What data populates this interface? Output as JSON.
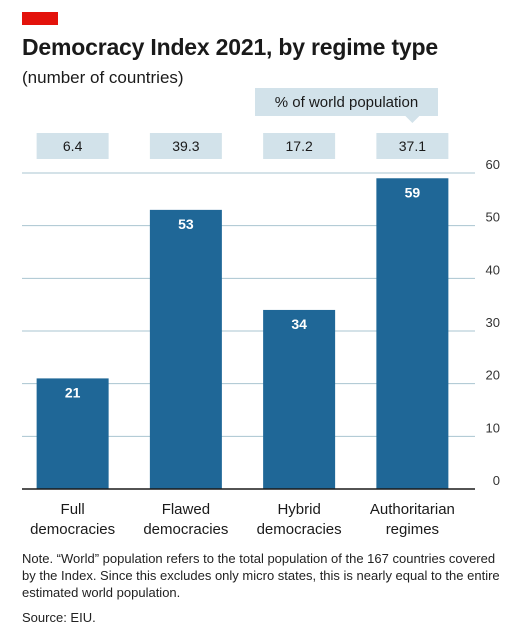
{
  "header": {
    "title": "Democracy Index 2021, by regime type",
    "subtitle": "(number of countries)"
  },
  "colors": {
    "accent": "#e3120b",
    "bar": "#1f6797",
    "pop_box": "#d2e2ea",
    "grid": "#a9c4d1",
    "axis": "#1a1a1a"
  },
  "chart_data": {
    "type": "bar",
    "categories": [
      [
        "Full",
        "democracies"
      ],
      [
        "Flawed",
        "democracies"
      ],
      [
        "Hybrid",
        "democracies"
      ],
      [
        "Authoritarian",
        "regimes"
      ]
    ],
    "values": [
      21,
      53,
      34,
      59
    ],
    "value_labels": [
      "21",
      "53",
      "34",
      "59"
    ],
    "ylim": [
      0,
      60
    ],
    "yticks": [
      0,
      10,
      20,
      30,
      40,
      50,
      60
    ],
    "ytick_labels": [
      "0",
      "10",
      "20",
      "30",
      "40",
      "50",
      "60"
    ],
    "yaxis_position": "right",
    "grid": true,
    "population_header": "% of world population",
    "population_share": [
      "6.4",
      "39.3",
      "17.2",
      "37.1"
    ]
  },
  "footer": {
    "note": "Note. “World” population refers to the total population of the 167 countries covered by the Index. Since this excludes only micro states, this is nearly equal to the entire estimated world population.",
    "source": "Source: EIU."
  }
}
